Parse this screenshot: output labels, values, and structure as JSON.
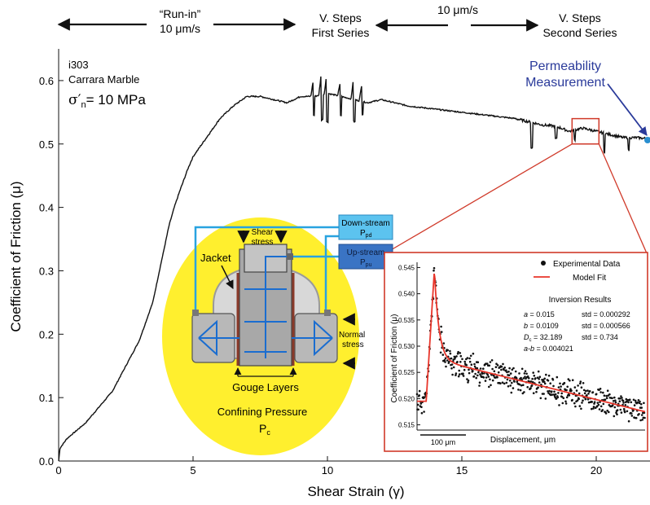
{
  "phases": [
    {
      "line1": "“Run-in”",
      "line2": "10 μm/s"
    },
    {
      "line1": "V. Steps",
      "line2": "First Series"
    },
    {
      "line1": "10 μm/s",
      "line2": ""
    },
    {
      "line1": "V. Steps",
      "line2": "Second Series"
    }
  ],
  "sample": {
    "id": "i303",
    "material": "Carrara Marble",
    "stress_symbol": "σ′",
    "stress_sub": "n",
    "stress_value": "= 10 MPa"
  },
  "permeability": {
    "line1": "Permeability",
    "line2": "Measurement"
  },
  "colors": {
    "trace": "#111111",
    "inset_border": "#d03a2a",
    "fit": "#e8352a",
    "perm_text": "#2a3a9a",
    "ellipse": "#ffef2e",
    "flow": "#29a3e0",
    "label_down": "#5cc3ef",
    "label_up": "#3a74c4"
  },
  "schematic": {
    "shear_stress": [
      "Shear",
      "stress"
    ],
    "down_stream": "Down-stream",
    "down_sym": "P",
    "down_sub": "pd",
    "up_stream": "Up-stream",
    "up_sym": "P",
    "up_sub": "pu",
    "jacket": "Jacket",
    "normal_stress": [
      "Normal",
      "stress"
    ],
    "gouge": "Gouge Layers",
    "confining": "Confining Pressure",
    "pc_sym": "P",
    "pc_sub": "c"
  },
  "inset": {
    "ylabel": "Coefficient of Friction (μ)",
    "xlabel": "Displacement, μm",
    "scale_bar": "100 μm",
    "legend": {
      "data": "Experimental Data",
      "fit": "Model Fit"
    },
    "results_title": "Inversion Results",
    "results_left": [
      {
        "sym": "a",
        "sub": "",
        "val": " = 0.015"
      },
      {
        "sym": "b",
        "sub": "",
        "val": " = 0.0109"
      },
      {
        "sym": "D",
        "sub": "c",
        "val": " = 32.189"
      },
      {
        "sym": "a-b",
        "sub": "",
        "val": " = 0.004021"
      }
    ],
    "results_right": [
      "std = 0.000292",
      "std = 0.000566",
      "std = 0.734"
    ],
    "y_ticks": [
      "0.545",
      "0.540",
      "0.535",
      "0.530",
      "0.525",
      "0.520",
      "0.515"
    ]
  },
  "chart_data": {
    "type": "line",
    "xlabel": "Shear Strain (γ)",
    "ylabel": "Coefficient of Friction (μ)",
    "xlim": [
      0,
      22
    ],
    "ylim": [
      0,
      0.65
    ],
    "x_ticks": [
      0,
      5,
      10,
      15,
      20
    ],
    "y_ticks": [
      0.0,
      0.1,
      0.2,
      0.3,
      0.4,
      0.5,
      0.6
    ],
    "grid": false,
    "series": [
      {
        "x": [
          0,
          0.05,
          0.3,
          1.0,
          2.0,
          3.0,
          3.5,
          3.8,
          4.1,
          4.3,
          4.5,
          4.8,
          5.0,
          5.5,
          6.0,
          6.5,
          7.0,
          7.5,
          8.0,
          8.5,
          9.0,
          9.5,
          10.0,
          10.5,
          11.0,
          11.5,
          12.0,
          12.5,
          13.0,
          14.0,
          15.0,
          16.0,
          17.0,
          17.5,
          18.0,
          18.5,
          19.0,
          19.5,
          20.0,
          20.5,
          21.0,
          21.5,
          22.0
        ],
        "y": [
          0.0,
          0.02,
          0.035,
          0.06,
          0.11,
          0.19,
          0.25,
          0.31,
          0.37,
          0.4,
          0.425,
          0.46,
          0.48,
          0.51,
          0.54,
          0.56,
          0.575,
          0.575,
          0.57,
          0.565,
          0.575,
          0.575,
          0.58,
          0.575,
          0.57,
          0.565,
          0.57,
          0.565,
          0.56,
          0.555,
          0.55,
          0.545,
          0.54,
          0.535,
          0.53,
          0.528,
          0.52,
          0.525,
          0.52,
          0.515,
          0.51,
          0.51,
          0.508
        ]
      }
    ],
    "spikes": [
      {
        "x": 9.5,
        "up": 0.025,
        "down": 0.03
      },
      {
        "x": 9.8,
        "up": 0.035,
        "down": 0.04
      },
      {
        "x": 10.0,
        "up": 0.03,
        "down": 0.045
      },
      {
        "x": 10.5,
        "up": 0.02,
        "down": 0.03
      },
      {
        "x": 11.0,
        "up": 0.035,
        "down": 0.035
      },
      {
        "x": 11.3,
        "up": 0.025,
        "down": 0.02
      },
      {
        "x": 17.6,
        "up": 0.0,
        "down": 0.04
      },
      {
        "x": 18.5,
        "up": 0.0,
        "down": 0.02
      },
      {
        "x": 19.2,
        "up": 0.0,
        "down": 0.015
      },
      {
        "x": 20.3,
        "up": 0.0,
        "down": 0.03
      },
      {
        "x": 21.2,
        "up": 0.0,
        "down": 0.02
      }
    ],
    "zoom_box": {
      "x0": 19.1,
      "x1": 20.1,
      "y0": 0.5,
      "y1": 0.54
    },
    "inset_chart": {
      "type": "scatter",
      "ylim": [
        0.514,
        0.546
      ],
      "xlim": [
        0,
        500
      ],
      "steps": {
        "x_jump": 20,
        "x_peak": 38,
        "base": 0.5195,
        "peak": 0.5445,
        "settle": 0.5275,
        "end": 0.5175
      }
    }
  }
}
